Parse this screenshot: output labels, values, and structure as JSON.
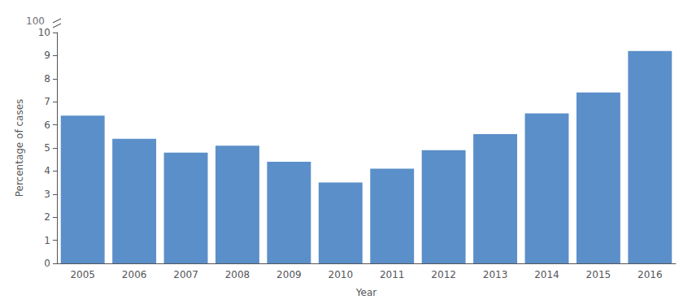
{
  "chart_data": {
    "type": "bar",
    "categories": [
      "2005",
      "2006",
      "2007",
      "2008",
      "2009",
      "2010",
      "2011",
      "2012",
      "2013",
      "2014",
      "2015",
      "2016"
    ],
    "values": [
      6.4,
      5.4,
      4.8,
      5.1,
      4.4,
      3.5,
      4.1,
      4.9,
      5.6,
      6.5,
      7.4,
      9.2
    ],
    "color": "#5b8fc9",
    "xlabel": "Year",
    "ylabel": "Percentage of cases",
    "annotation": "100",
    "ylim": [
      0,
      10
    ],
    "yticks": [
      0,
      1,
      2,
      3,
      4,
      5,
      6,
      7,
      8,
      9,
      10
    ],
    "grid": false
  }
}
